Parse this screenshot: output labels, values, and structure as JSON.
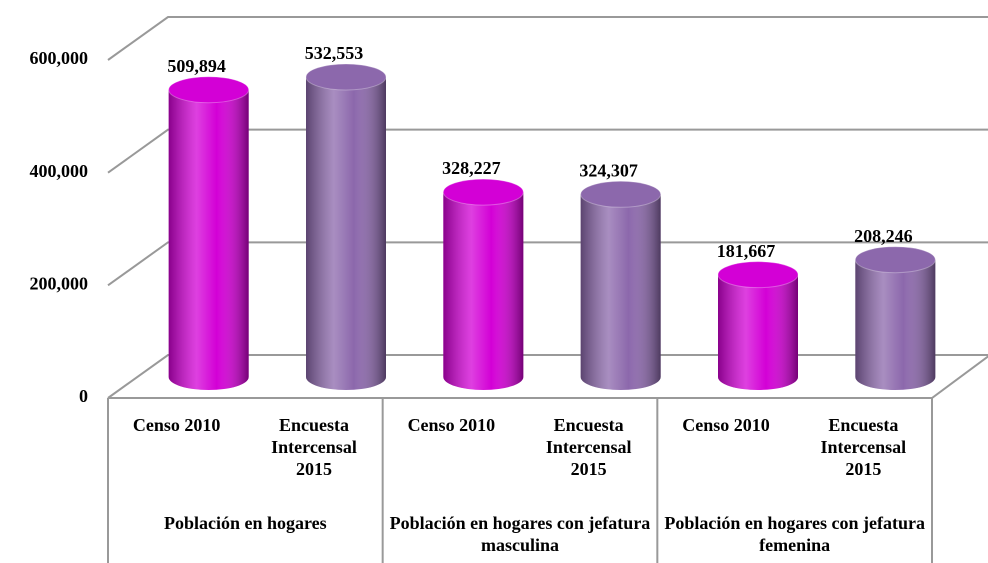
{
  "chart_data": {
    "type": "bar",
    "colors": [
      "#d300d6",
      "#8c68ac"
    ],
    "groups": [
      {
        "label": "Población en hogares",
        "categories": [
          "Censo 2010",
          "Encuesta Intercensal 2015"
        ],
        "values": [
          509894,
          532553
        ],
        "value_labels": [
          "509,894",
          "532,553"
        ]
      },
      {
        "label": "Población en hogares con jefatura masculina",
        "categories": [
          "Censo 2010",
          "Encuesta Intercensal 2015"
        ],
        "values": [
          328227,
          324307
        ],
        "value_labels": [
          "328,227",
          "324,307"
        ]
      },
      {
        "label": "Población en hogares con jefatura femenina",
        "categories": [
          "Censo 2010",
          "Encuesta Intercensal 2015"
        ],
        "values": [
          181667,
          208246
        ],
        "value_labels": [
          "181,667",
          "208,246"
        ]
      }
    ],
    "ylim": [
      0,
      600000
    ],
    "yticks": [
      0,
      {
        "value": 200000,
        "label": "200,000"
      },
      {
        "value": 400000,
        "label": "400,000"
      },
      {
        "value": 600000,
        "label": "600,000"
      }
    ],
    "grid": true
  }
}
